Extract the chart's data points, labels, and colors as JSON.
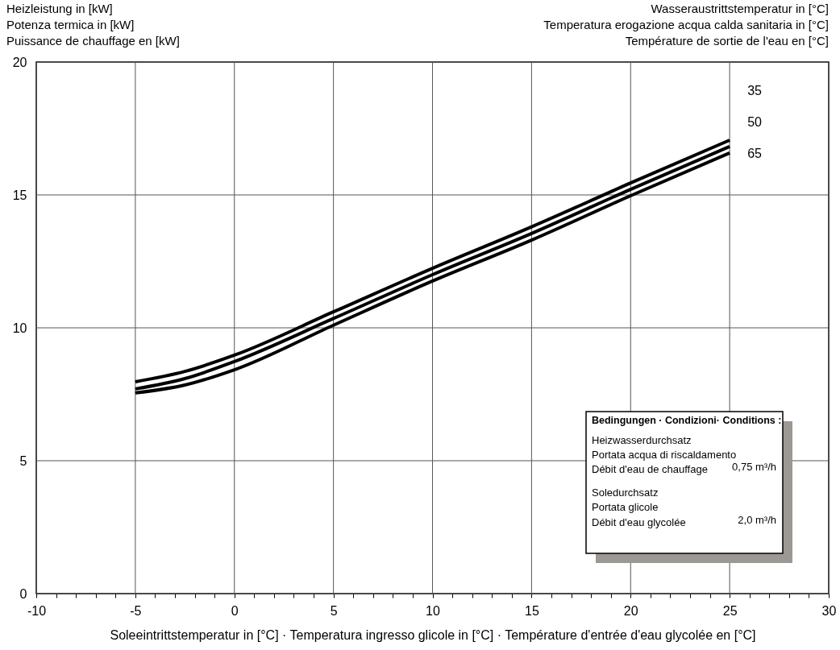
{
  "chart_data": {
    "type": "line",
    "ylabel": "Heizleistung in [kW]\nPotenza termica in [kW]\nPuissance de chauffage en [kW]",
    "legend_title": "Wasseraustrittstemperatur in [°C]\nTemperatura erogazione acqua calda sanitaria in [°C]\nTempérature de sortie de l'eau en [°C]",
    "xlabel": "Soleeintrittstemperatur in [°C] · Temperatura ingresso glicole in [°C] · Température d'entrée d'eau glycolée en [°C]",
    "x": [
      -5,
      -2.5,
      0,
      5,
      10,
      15,
      20,
      25
    ],
    "series": [
      {
        "name": "35",
        "color": "#000000",
        "values": [
          7.97,
          8.36,
          8.97,
          10.6,
          12.24,
          13.8,
          15.45,
          17.06
        ]
      },
      {
        "name": "50",
        "color": "#000000",
        "values": [
          7.7,
          8.09,
          8.73,
          10.35,
          12.0,
          13.55,
          15.21,
          16.82
        ]
      },
      {
        "name": "65",
        "color": "#000000",
        "values": [
          7.55,
          7.85,
          8.42,
          10.1,
          11.76,
          13.3,
          14.97,
          16.58
        ]
      }
    ],
    "xlim": [
      -10,
      30
    ],
    "ylim": [
      0,
      20
    ],
    "xticks": [
      -10,
      {
        "value": -9,
        "label": null
      },
      {
        "value": -8,
        "label": null
      },
      {
        "value": -7,
        "label": null
      },
      {
        "value": -6,
        "label": null
      },
      -5,
      {
        "value": -4,
        "label": null
      },
      {
        "value": -3,
        "label": null
      },
      {
        "value": -2,
        "label": null
      },
      {
        "value": -1,
        "label": null
      },
      0,
      {
        "value": 1,
        "label": null
      },
      {
        "value": 2,
        "label": null
      },
      {
        "value": 3,
        "label": null
      },
      {
        "value": 4,
        "label": null
      },
      5,
      {
        "value": 6,
        "label": null
      },
      {
        "value": 7,
        "label": null
      },
      {
        "value": 8,
        "label": null
      },
      {
        "value": 9,
        "label": null
      },
      10,
      {
        "value": 11,
        "label": null
      },
      {
        "value": 12,
        "label": null
      },
      {
        "value": 13,
        "label": null
      },
      {
        "value": 14,
        "label": null
      },
      15,
      {
        "value": 16,
        "label": null
      },
      {
        "value": 17,
        "label": null
      },
      {
        "value": 18,
        "label": null
      },
      {
        "value": 19,
        "label": null
      },
      20,
      {
        "value": 21,
        "label": null
      },
      {
        "value": 22,
        "label": null
      },
      {
        "value": 23,
        "label": null
      },
      {
        "value": 24,
        "label": null
      },
      25,
      {
        "value": 26,
        "label": null
      },
      {
        "value": 27,
        "label": null
      },
      {
        "value": 28,
        "label": null
      },
      {
        "value": 29,
        "label": null
      },
      30
    ],
    "yticks": [
      0,
      5,
      10,
      15,
      20
    ],
    "grid": true,
    "marker": "none",
    "line_style": "solid",
    "annotations": [
      "Bedingungen · Condizioni· Conditions :",
      "Heizwasserdurchsatz",
      "Portata acqua di riscaldamento",
      "Débit d'eau de chauffage",
      "0,75 m³/h",
      "Soledurchsatz",
      "Portata glicole",
      "Débit d'eau glycolée",
      "2,0 m³/h"
    ]
  }
}
